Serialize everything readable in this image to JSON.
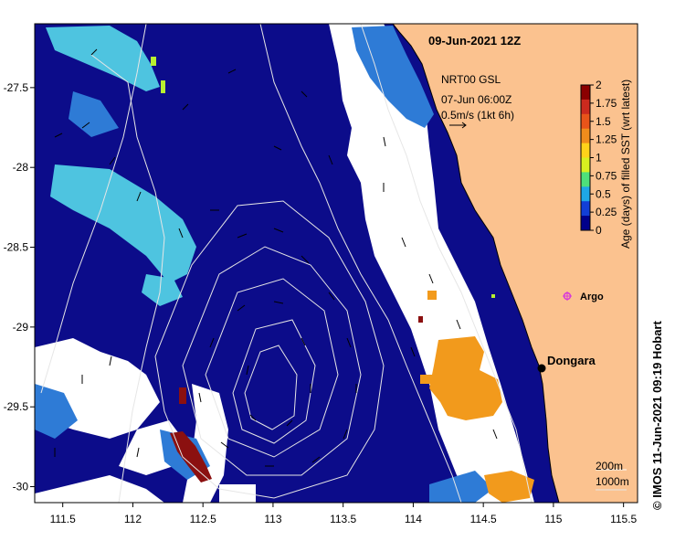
{
  "title": "09-Jun-2021 12Z",
  "velocity_legend": {
    "line1": "NRT00 GSL",
    "line2": "07-Jun 06:00Z",
    "line3": "0.5m/s (1kt 6h)"
  },
  "colorbar": {
    "label": "Age (days) of filled SST (wrt latest)",
    "ticks": [
      "2",
      "1.75",
      "1.5",
      "1.25",
      "1",
      "0.75",
      "0.5",
      "0.25",
      "0"
    ],
    "colors": [
      "#8b0000",
      "#cc2a1e",
      "#e8541a",
      "#f08c1c",
      "#ffd21a",
      "#d8f020",
      "#4ee07a",
      "#1ea8e6",
      "#123fd6",
      "#00008b"
    ]
  },
  "map": {
    "x_ticks": [
      "111.5",
      "112",
      "112.5",
      "113",
      "113.5",
      "114",
      "114.5",
      "115",
      "115.5"
    ],
    "y_ticks": [
      "-27.5",
      "-28",
      "-28.5",
      "-29",
      "-29.5",
      "-30"
    ],
    "lon_range": [
      111.3,
      115.6
    ],
    "lat_range": [
      -30.1,
      -27.1
    ]
  },
  "places": {
    "dongara": "Dongara",
    "argo": "Argo"
  },
  "depth_legend": {
    "line1": "200m",
    "line2": "1000m"
  },
  "credit": "© IMOS 11-Jun-2021 09:19 Hobart",
  "colors": {
    "land": "#fbc28f",
    "ocean": "#0c0c8a",
    "missing": "#ffffff",
    "stale": "#f29a1c",
    "recent": "#4ec4e0",
    "mid": "#2e7bd6",
    "argo": "#d83ad8"
  }
}
